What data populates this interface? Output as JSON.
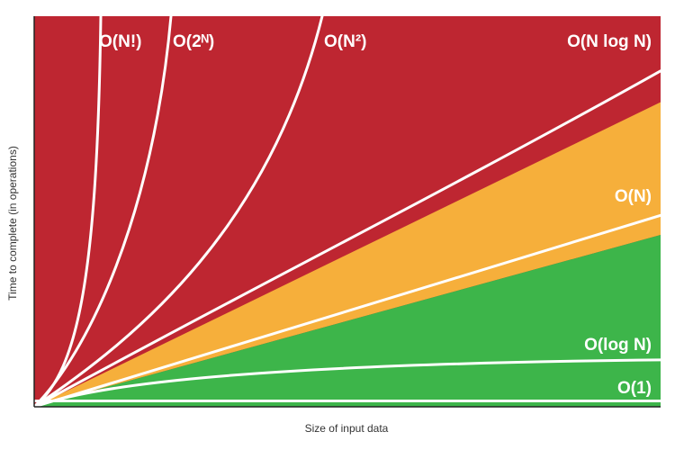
{
  "chart_data": {
    "type": "area",
    "title": "",
    "xlabel": "Size of input data",
    "ylabel": "Time to complete (in operations)",
    "grid": false,
    "legend": "none",
    "x_ticks": [],
    "y_ticks": [],
    "colors": {
      "bad": "#BE2631",
      "fair": "#F6AF3B",
      "good": "#3DB54A",
      "curve": "#ffffff",
      "axis": "#222222"
    },
    "regions": [
      {
        "name": "bad",
        "color": "#BE2631"
      },
      {
        "name": "fair",
        "color": "#F6AF3B"
      },
      {
        "name": "good",
        "color": "#3DB54A"
      }
    ],
    "series": [
      {
        "label": "O(N!)",
        "kind": "factorial"
      },
      {
        "label": "O(2ᴺ)",
        "kind": "exponential"
      },
      {
        "label": "O(N²)",
        "kind": "quadratic"
      },
      {
        "label": "O(N log N)",
        "kind": "linearithmic"
      },
      {
        "label": "O(N)",
        "kind": "linear"
      },
      {
        "label": "O(log N)",
        "kind": "logarithmic"
      },
      {
        "label": "O(1)",
        "kind": "constant"
      }
    ]
  }
}
